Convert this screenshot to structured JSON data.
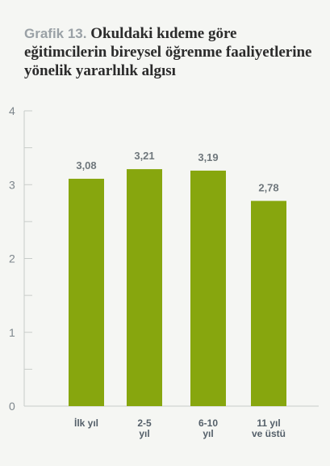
{
  "title_prefix": "Grafik 13.",
  "title": "Okuldaki kıdeme göre eğitimcilerin bireysel öğrenme faaliyetlerine yönelik yararlılık algısı",
  "colors": {
    "bar": "#87a60e",
    "axis": "#c8ccc9",
    "background": "#f5f6f3"
  },
  "chart_data": {
    "type": "bar",
    "title": "Okuldaki kıdeme göre eğitimcilerin bireysel öğrenme faaliyetlerine yönelik yararlılık algısı",
    "categories": [
      [
        "İlk yıl"
      ],
      [
        "2-5",
        "yıl"
      ],
      [
        "6-10",
        "yıl"
      ],
      [
        "11 yıl",
        "ve üstü"
      ]
    ],
    "values": [
      3.08,
      3.21,
      3.19,
      2.78
    ],
    "value_labels": [
      "3,08",
      "3,21",
      "3,19",
      "2,78"
    ],
    "ylim": [
      0,
      4
    ],
    "yticks": [
      0,
      1,
      2,
      3,
      4
    ],
    "grid": false,
    "legend": "none"
  }
}
